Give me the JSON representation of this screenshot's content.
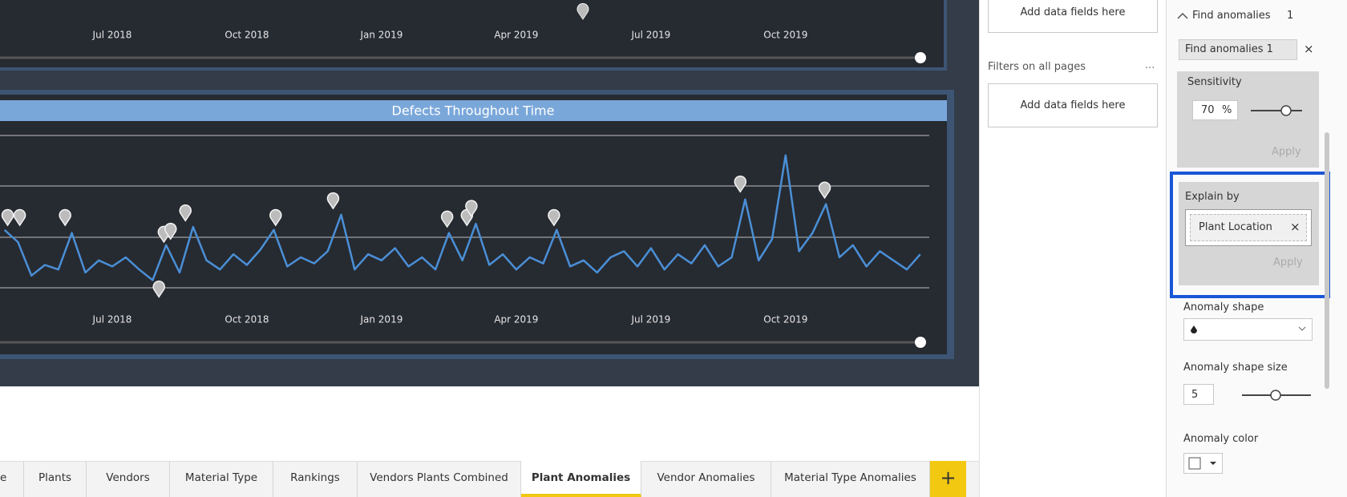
{
  "chart_data": [
    {
      "type": "line",
      "xlim": [
        -2.5,
        18.2
      ],
      "xticks": [
        {
          "value": 0,
          "label": "Jul 2018"
        },
        {
          "value": 3,
          "label": "Oct 2018"
        },
        {
          "value": 6,
          "label": "Jan 2019"
        },
        {
          "value": 9,
          "label": "Apr 2019"
        },
        {
          "value": 12,
          "label": "Jul 2019"
        },
        {
          "value": 15,
          "label": "Oct 2019"
        }
      ]
    },
    {
      "type": "line",
      "title": "Defects Throughout Time",
      "color": "#4a8fd6",
      "xlim": [
        -2.5,
        18.2
      ],
      "ylim": [
        0,
        100
      ],
      "xticks": [
        {
          "value": 0,
          "label": "Jul 2018"
        },
        {
          "value": 3,
          "label": "Oct 2018"
        },
        {
          "value": 6,
          "label": "Jan 2019"
        },
        {
          "value": 9,
          "label": "Apr 2019"
        },
        {
          "value": 12,
          "label": "Jul 2019"
        },
        {
          "value": 15,
          "label": "Oct 2019"
        }
      ],
      "x": [
        -2.4,
        -2.1,
        -1.8,
        -1.5,
        -1.2,
        -0.9,
        -0.6,
        -0.3,
        0,
        0.3,
        0.6,
        0.9,
        1.2,
        1.5,
        1.8,
        2.1,
        2.4,
        2.7,
        3,
        3.3,
        3.6,
        3.9,
        4.2,
        4.5,
        4.8,
        5.1,
        5.4,
        5.7,
        6,
        6.3,
        6.6,
        6.9,
        7.2,
        7.5,
        7.8,
        8.1,
        8.4,
        8.7,
        9,
        9.3,
        9.6,
        9.9,
        10.2,
        10.5,
        10.8,
        11.1,
        11.4,
        11.7,
        12,
        12.3,
        12.6,
        12.9,
        13.2,
        13.5,
        13.8,
        14.1,
        14.4,
        14.7,
        15,
        15.3,
        15.6,
        15.9,
        16.2,
        16.5,
        16.8,
        17.1,
        17.4,
        17.7,
        18
      ],
      "values": [
        38,
        30,
        8,
        15,
        12,
        36,
        10,
        18,
        14,
        20,
        12,
        5,
        28,
        10,
        40,
        18,
        12,
        22,
        15,
        25,
        38,
        14,
        20,
        16,
        24,
        48,
        12,
        22,
        18,
        26,
        14,
        20,
        12,
        36,
        18,
        42,
        15,
        22,
        12,
        20,
        16,
        38,
        14,
        18,
        10,
        20,
        24,
        14,
        26,
        12,
        22,
        16,
        28,
        14,
        20,
        58,
        18,
        32,
        87,
        24,
        36,
        55,
        20,
        28,
        14,
        24,
        18,
        12,
        22
      ],
      "anomalies": {
        "x": [
          -2.33,
          -2.06,
          -1.05,
          1.04,
          1.15,
          1.3,
          1.63,
          3.64,
          4.92,
          7.46,
          7.9,
          8.0,
          9.84,
          13.99,
          15.87
        ],
        "values": [
          41,
          41,
          41,
          -6,
          30,
          32,
          44,
          41,
          52,
          40,
          41,
          47,
          41,
          63,
          59
        ]
      }
    }
  ],
  "filters": {
    "visual_add": "Add data fields here",
    "all_pages_title": "Filters on all pages",
    "all_pages_more": "...",
    "all_pages_add": "Add data fields here"
  },
  "panel": {
    "section": "Find anomalies",
    "section_count": "1",
    "chip": "Find anomalies 1",
    "chip_close": "×",
    "sensitivity_label": "Sensitivity",
    "sensitivity_value": "70",
    "sensitivity_unit": "%",
    "apply1": "Apply",
    "explain_label": "Explain by",
    "explain_field": "Plant Location",
    "explain_close": "×",
    "apply2": "Apply",
    "shape_label": "Anomaly shape",
    "shape_size_label": "Anomaly shape size",
    "shape_size_value": "5",
    "color_label": "Anomaly color"
  },
  "tabs": [
    "e",
    "Plants",
    "Vendors",
    "Material Type",
    "Rankings",
    "Vendors Plants Combined",
    "Plant Anomalies",
    "Vendor Anomalies",
    "Material Type Anomalies"
  ],
  "add_tab": "+"
}
